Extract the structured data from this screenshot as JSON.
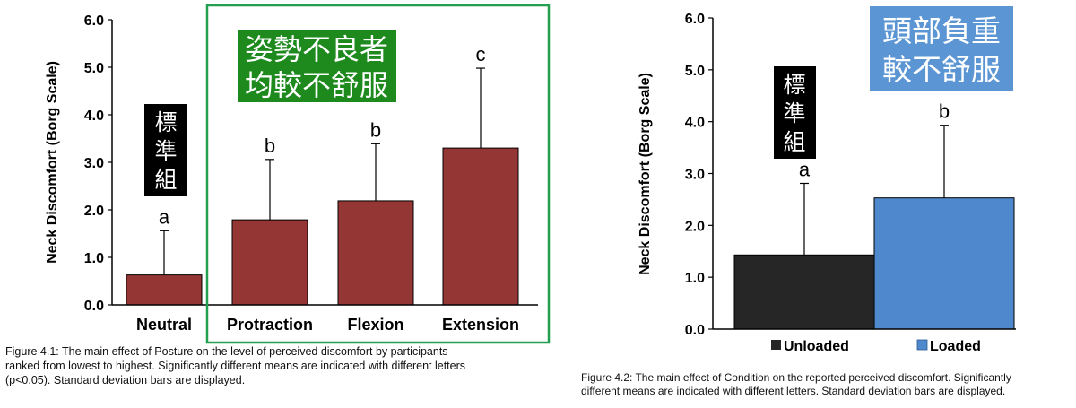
{
  "chart_data": [
    {
      "type": "bar",
      "ylabel": "Neck Discomfort (Borg Scale)",
      "ylim": [
        0,
        6
      ],
      "ticks": [
        "0.0",
        "1.0",
        "2.0",
        "3.0",
        "4.0",
        "5.0",
        "6.0"
      ],
      "categories": [
        "Neutral",
        "Protraction",
        "Flexion",
        "Extension"
      ],
      "values": [
        0.63,
        1.79,
        2.19,
        3.3
      ],
      "errors": [
        0.93,
        1.27,
        1.2,
        1.68
      ],
      "letters": [
        "a",
        "b",
        "b",
        "c"
      ],
      "bar_color": "#943634",
      "annotations": {
        "standard_group": [
          "標",
          "準",
          "組"
        ],
        "poor_posture": [
          "姿勢不良者",
          "均較不舒服"
        ],
        "poor_posture_bg": "#1e8a1e",
        "highlight_border": "#22a050"
      },
      "caption": [
        "Figure 4.1: The main effect of Posture on the level of perceived discomfort by participants",
        "ranked from lowest to highest. Significantly different means are indicated with different letters",
        "(p<0.05). Standard deviation bars are displayed."
      ]
    },
    {
      "type": "bar",
      "ylabel": "Neck Discomfort (Borg Scale)",
      "ylim": [
        0,
        6
      ],
      "ticks": [
        "0.0",
        "1.0",
        "2.0",
        "3.0",
        "4.0",
        "5.0",
        "6.0"
      ],
      "categories": [
        "Unloaded",
        "Loaded"
      ],
      "values": [
        1.43,
        2.53
      ],
      "errors": [
        1.38,
        1.4
      ],
      "letters": [
        "a",
        "b"
      ],
      "bar_colors": [
        "#262626",
        "#4f88cc"
      ],
      "legend": [
        "Unloaded",
        "Loaded"
      ],
      "annotations": {
        "standard_group": [
          "標",
          "準",
          "組"
        ],
        "head_load": [
          "頭部負重",
          "較不舒服"
        ],
        "head_load_bg": "#5b95d3"
      },
      "caption": [
        "Figure 4.2: The main effect of Condition on the reported perceived discomfort. Significantly",
        "different means are indicated with different letters. Standard deviation bars are displayed."
      ]
    }
  ]
}
